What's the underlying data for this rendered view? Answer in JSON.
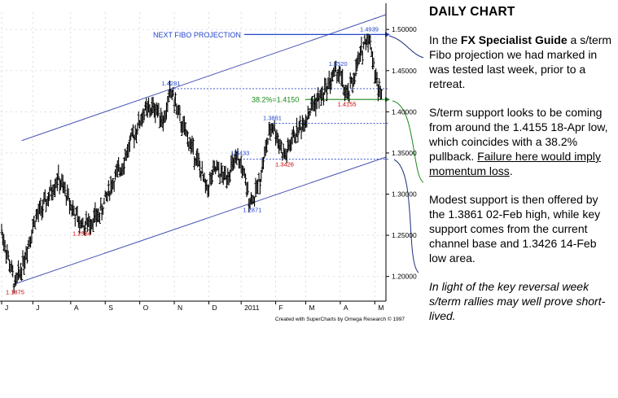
{
  "commentary": {
    "heading": "DAILY CHART",
    "p1_pre": "In the ",
    "p1_bold": "FX Specialist Guide",
    "p1_post": " a s/term Fibo projection we had marked in was tested last week, prior to a retreat.",
    "p2_pre": "S/term support looks to be coming from around the 1.4155 18-Apr low, which coincides with a 38.2% pullback. ",
    "p2_underline": "Failure here would imply momentum loss",
    "p2_post": ".",
    "p3": "Modest support is then offered by the 1.3861 02-Feb high, while key support comes from the current channel base and 1.3426 14-Feb low area.",
    "p4": "In light of the key reversal week s/term rallies may well prove short-lived."
  },
  "chart_data": {
    "type": "ohlc",
    "credit": "Created with SuperCharts by Omega Research © 1997",
    "ylim": [
      1.17,
      1.52
    ],
    "yticks": [
      "1.50000",
      "1.45000",
      "1.40000",
      "1.35000",
      "1.30000",
      "1.25000",
      "1.20000"
    ],
    "ytick_values": [
      1.5,
      1.45,
      1.4,
      1.35,
      1.3,
      1.25,
      1.2
    ],
    "x_tick_labels": [
      "J",
      "J",
      "A",
      "S",
      "O",
      "N",
      "D",
      "2011",
      "F",
      "M",
      "A",
      "M"
    ],
    "x_tick_days": [
      0,
      28,
      62,
      93,
      124,
      155,
      186,
      215,
      246,
      273,
      304,
      335
    ],
    "x_range_days": [
      0,
      345
    ],
    "series_colors": {
      "bars": "#000000",
      "channel": "#4a55b5",
      "fibo": "#2244cc",
      "retracement": "#1a8a1a",
      "lows": "#cc0000"
    },
    "price_path": [
      {
        "day": 0,
        "price": 1.255
      },
      {
        "day": 10,
        "price": 1.2
      },
      {
        "day": 12,
        "price": 1.1875
      },
      {
        "day": 20,
        "price": 1.22
      },
      {
        "day": 30,
        "price": 1.27
      },
      {
        "day": 40,
        "price": 1.29
      },
      {
        "day": 50,
        "price": 1.32
      },
      {
        "day": 58,
        "price": 1.3
      },
      {
        "day": 66,
        "price": 1.275
      },
      {
        "day": 72,
        "price": 1.2584
      },
      {
        "day": 80,
        "price": 1.268
      },
      {
        "day": 88,
        "price": 1.275
      },
      {
        "day": 98,
        "price": 1.31
      },
      {
        "day": 108,
        "price": 1.335
      },
      {
        "day": 118,
        "price": 1.37
      },
      {
        "day": 128,
        "price": 1.4
      },
      {
        "day": 138,
        "price": 1.405
      },
      {
        "day": 146,
        "price": 1.39
      },
      {
        "day": 152,
        "price": 1.4281
      },
      {
        "day": 160,
        "price": 1.39
      },
      {
        "day": 168,
        "price": 1.365
      },
      {
        "day": 176,
        "price": 1.34
      },
      {
        "day": 184,
        "price": 1.305
      },
      {
        "day": 192,
        "price": 1.33
      },
      {
        "day": 200,
        "price": 1.32
      },
      {
        "day": 208,
        "price": 1.335
      },
      {
        "day": 214,
        "price": 1.3433
      },
      {
        "day": 220,
        "price": 1.305
      },
      {
        "day": 225,
        "price": 1.2871
      },
      {
        "day": 232,
        "price": 1.32
      },
      {
        "day": 238,
        "price": 1.36
      },
      {
        "day": 243,
        "price": 1.3861
      },
      {
        "day": 250,
        "price": 1.36
      },
      {
        "day": 254,
        "price": 1.3426
      },
      {
        "day": 262,
        "price": 1.37
      },
      {
        "day": 270,
        "price": 1.385
      },
      {
        "day": 280,
        "price": 1.41
      },
      {
        "day": 288,
        "price": 1.42
      },
      {
        "day": 296,
        "price": 1.44
      },
      {
        "day": 302,
        "price": 1.452
      },
      {
        "day": 310,
        "price": 1.4155
      },
      {
        "day": 318,
        "price": 1.45
      },
      {
        "day": 326,
        "price": 1.485
      },
      {
        "day": 330,
        "price": 1.4939
      },
      {
        "day": 336,
        "price": 1.44
      },
      {
        "day": 341,
        "price": 1.4155
      }
    ],
    "channel": {
      "upper": [
        {
          "day": 18,
          "price": 1.365
        },
        {
          "day": 345,
          "price": 1.518
        }
      ],
      "lower": [
        {
          "day": 10,
          "price": 1.19
        },
        {
          "day": 345,
          "price": 1.345
        }
      ]
    },
    "levels": [
      {
        "name": "fibo-projection",
        "price": 1.4939,
        "label": "NEXT FIBO PROJECTION",
        "style": "solid",
        "color": "#2244cc",
        "from_day": 0
      },
      {
        "name": "retracement-382",
        "price": 1.415,
        "label": "38.2%=1.4150",
        "style": "solid",
        "color": "#1a8a1a",
        "from_day": 270
      },
      {
        "name": "level-14281",
        "price": 1.4281,
        "label": "",
        "style": "dashed",
        "color": "#2244cc",
        "from_day": 152
      },
      {
        "name": "level-13861",
        "price": 1.3861,
        "label": "",
        "style": "dashed",
        "color": "#2244cc",
        "from_day": 243
      },
      {
        "name": "level-13426",
        "price": 1.3426,
        "label": "",
        "style": "dashed",
        "color": "#2244cc",
        "from_day": 214
      }
    ],
    "annotations": [
      {
        "text": "1.4939",
        "day": 330,
        "price": 1.4939,
        "pos": "above",
        "color": "#2244cc"
      },
      {
        "text": "1.4520",
        "day": 302,
        "price": 1.452,
        "pos": "above",
        "color": "#2244cc"
      },
      {
        "text": "1.4281",
        "day": 152,
        "price": 1.4281,
        "pos": "above",
        "color": "#2244cc"
      },
      {
        "text": "1.3861",
        "day": 243,
        "price": 1.3861,
        "pos": "above",
        "color": "#2244cc"
      },
      {
        "text": "1.3433",
        "day": 214,
        "price": 1.3433,
        "pos": "above",
        "color": "#2244cc"
      },
      {
        "text": "1.2871",
        "day": 225,
        "price": 1.2871,
        "pos": "below",
        "color": "#2244cc"
      },
      {
        "text": "1.4155",
        "day": 310,
        "price": 1.4155,
        "pos": "below",
        "color": "#cc0000"
      },
      {
        "text": "1.3426",
        "day": 254,
        "price": 1.3426,
        "pos": "below",
        "color": "#cc0000"
      },
      {
        "text": "1.2584",
        "day": 72,
        "price": 1.2584,
        "pos": "below",
        "color": "#cc0000"
      },
      {
        "text": "1.1875",
        "day": 12,
        "price": 1.1875,
        "pos": "below",
        "color": "#cc0000"
      }
    ]
  }
}
